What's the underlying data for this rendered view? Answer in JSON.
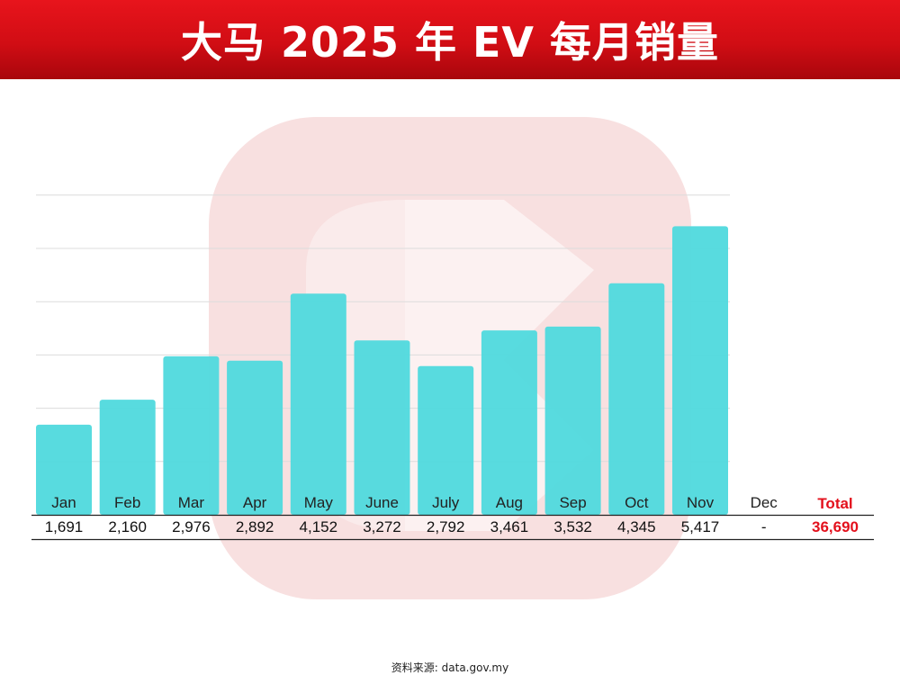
{
  "header": {
    "title": "大马 2025 年 EV 每月销量"
  },
  "source": {
    "text": "资料来源: data.gov.my"
  },
  "colors": {
    "bar": "#4fd9dd",
    "banner": "#d10d14",
    "total": "#e3101c",
    "grid": "#dcdcdc",
    "watermark": "#f7dada"
  },
  "watermark": {
    "icon": "logo-watermark-icon"
  },
  "chart_data": {
    "type": "bar",
    "title": "大马 2025 年 EV 每月销量",
    "categories": [
      "Jan",
      "Feb",
      "Mar",
      "Apr",
      "May",
      "June",
      "July",
      "Aug",
      "Sep",
      "Oct",
      "Nov",
      "Dec"
    ],
    "values": [
      1691,
      2160,
      2976,
      2892,
      4152,
      3272,
      2792,
      3461,
      3532,
      4345,
      5417,
      null
    ],
    "value_labels": [
      "1,691",
      "2,160",
      "2,976",
      "2,892",
      "4,152",
      "3,272",
      "2,792",
      "3,461",
      "3,532",
      "4,345",
      "5,417",
      "-"
    ],
    "total_label": "Total",
    "total_value": "36,690",
    "ylim": [
      0,
      6000
    ],
    "grid": true,
    "xlabel": "",
    "ylabel": ""
  }
}
